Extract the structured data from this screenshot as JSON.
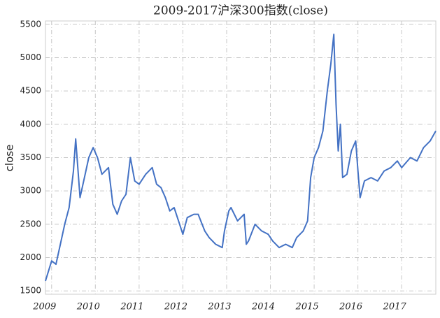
{
  "chart_data": {
    "type": "line",
    "title": "2009-2017沪深300指数(close)",
    "ylabel": "close",
    "xlim": [
      2008.86,
      2017.78
    ],
    "xticks": [
      2009,
      2010,
      2011,
      2012,
      2013,
      2014,
      2015,
      2016,
      2017
    ],
    "ylim": [
      1450,
      5550
    ],
    "yticks": [
      1500,
      2000,
      2500,
      3000,
      3500,
      4000,
      4500,
      5000,
      5500
    ],
    "grid": true,
    "x": [
      2008.86,
      2009.0,
      2009.1,
      2009.2,
      2009.3,
      2009.4,
      2009.5,
      2009.55,
      2009.65,
      2009.75,
      2009.85,
      2009.95,
      2010.05,
      2010.15,
      2010.3,
      2010.4,
      2010.5,
      2010.6,
      2010.7,
      2010.8,
      2010.9,
      2011.0,
      2011.15,
      2011.3,
      2011.4,
      2011.5,
      2011.6,
      2011.7,
      2011.8,
      2011.9,
      2012.0,
      2012.1,
      2012.25,
      2012.35,
      2012.5,
      2012.6,
      2012.75,
      2012.9,
      2012.95,
      2013.05,
      2013.1,
      2013.25,
      2013.4,
      2013.45,
      2013.5,
      2013.65,
      2013.8,
      2013.95,
      2014.05,
      2014.2,
      2014.35,
      2014.5,
      2014.6,
      2014.75,
      2014.85,
      2014.92,
      2015.0,
      2015.1,
      2015.2,
      2015.3,
      2015.38,
      2015.45,
      2015.5,
      2015.55,
      2015.6,
      2015.65,
      2015.75,
      2015.85,
      2015.95,
      2016.0,
      2016.05,
      2016.15,
      2016.3,
      2016.45,
      2016.6,
      2016.75,
      2016.9,
      2017.0,
      2017.2,
      2017.35,
      2017.5,
      2017.65,
      2017.78
    ],
    "series": [
      {
        "name": "close",
        "color": "#4472c4",
        "values": [
          1650,
          1950,
          1900,
          2200,
          2500,
          2750,
          3300,
          3780,
          2900,
          3200,
          3500,
          3650,
          3500,
          3250,
          3350,
          2800,
          2650,
          2850,
          2950,
          3500,
          3150,
          3100,
          3250,
          3350,
          3100,
          3050,
          2900,
          2700,
          2750,
          2550,
          2350,
          2600,
          2650,
          2650,
          2400,
          2300,
          2200,
          2150,
          2400,
          2700,
          2750,
          2550,
          2650,
          2200,
          2250,
          2500,
          2400,
          2350,
          2250,
          2150,
          2200,
          2150,
          2300,
          2400,
          2550,
          3200,
          3500,
          3650,
          3900,
          4500,
          4900,
          5350,
          4300,
          3600,
          4000,
          3200,
          3250,
          3600,
          3750,
          3300,
          2900,
          3150,
          3200,
          3150,
          3300,
          3350,
          3450,
          3350,
          3500,
          3450,
          3650,
          3750,
          3900
        ]
      }
    ]
  }
}
